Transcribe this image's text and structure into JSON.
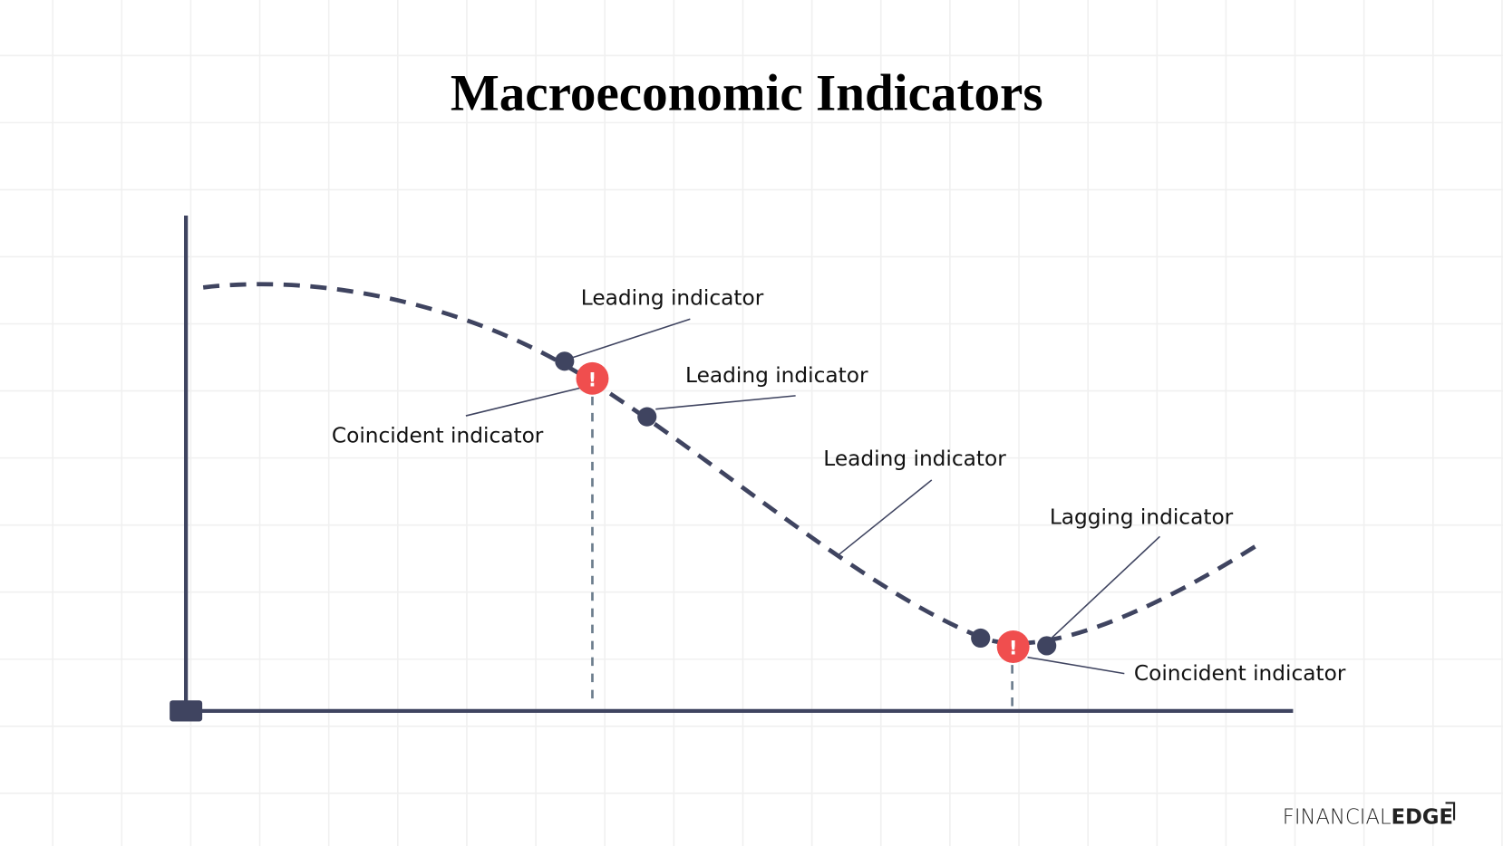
{
  "title": "Macroeconomic Indicators",
  "labels": [
    "Leading indicator",
    "Leading indicator",
    "Coincident indicator",
    "Leading indicator",
    "Lagging indicator",
    "Coincident indicator"
  ],
  "alerts": [
    "!",
    "!"
  ],
  "logo": {
    "light": "FINANCIAL",
    "bold": "EDGE"
  }
}
